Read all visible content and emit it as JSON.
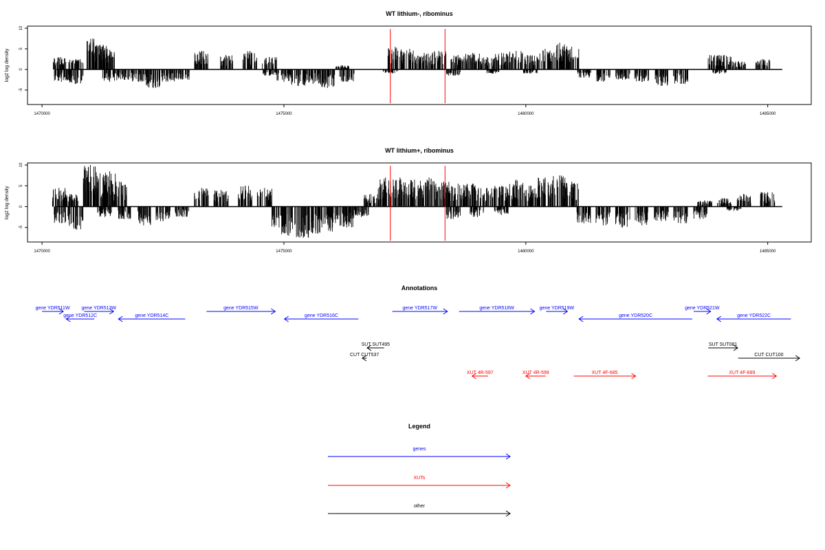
{
  "chart_data": [
    {
      "type": "bar",
      "title": "WT lithium-, ribominus",
      "ylabel": "log2 log density",
      "xlabel": "",
      "xlim": [
        1469700,
        1485900
      ],
      "ylim": [
        -8.5,
        10.5
      ],
      "xticks": [
        1470000,
        1475000,
        1480000,
        1485000
      ],
      "xtick_labels": [
        "1470000",
        "1475000",
        "1480000",
        "1485000"
      ],
      "yticks": [
        -5,
        0,
        5,
        10
      ],
      "ytick_labels": [
        "-5",
        "0",
        "5",
        "10"
      ],
      "series": [
        {
          "strand": "plus",
          "x": [
            1470350,
            1470700,
            1471050,
            1471200,
            1471350,
            1473300,
            1473800,
            1474300,
            1474700,
            1476200,
            1477300,
            1477600,
            1477900,
            1478200,
            1478600,
            1478900,
            1479200,
            1479500,
            1479800,
            1480100,
            1480400,
            1480700,
            1480950,
            1483900,
            1484100,
            1484400,
            1484900
          ],
          "y": [
            3,
            2.5,
            7.5,
            6,
            5,
            4.5,
            3.5,
            4.5,
            3,
            1,
            5.5,
            5,
            4,
            4.5,
            3.5,
            4,
            3,
            4,
            4.5,
            3.5,
            5,
            6.5,
            5.5,
            3.5,
            3.5,
            2,
            2.5
          ]
        },
        {
          "strand": "minus",
          "x": [
            1470400,
            1470700,
            1471400,
            1471700,
            1472000,
            1472300,
            1472600,
            1472900,
            1474700,
            1475000,
            1475300,
            1475600,
            1475900,
            1476300,
            1477200,
            1478500,
            1479300,
            1480100,
            1481200,
            1481600,
            1482000,
            1482400,
            1482800,
            1483200,
            1484000
          ],
          "y": [
            -3,
            -3.5,
            -3,
            -2.5,
            -3,
            -4.5,
            -3,
            -2.5,
            -1.5,
            -3,
            -4,
            -3.5,
            -4.5,
            -3,
            -1,
            -1.5,
            -1,
            -1,
            -2,
            -3,
            -2.5,
            -3,
            -4,
            -3.5,
            -1
          ]
        }
      ],
      "markers": [
        1477200,
        1478330
      ],
      "marker_color": "#ff0000"
    },
    {
      "type": "bar",
      "title": "WT lithium+, ribominus",
      "ylabel": "log2 log density",
      "xlabel": "",
      "xlim": [
        1469700,
        1485900
      ],
      "ylim": [
        -8.5,
        10.5
      ],
      "xticks": [
        1470000,
        1475000,
        1480000,
        1485000
      ],
      "xtick_labels": [
        "1470000",
        "1475000",
        "1480000",
        "1485000"
      ],
      "yticks": [
        -5,
        0,
        5,
        10
      ],
      "ytick_labels": [
        "-5",
        "0",
        "5",
        "10"
      ],
      "series": [
        {
          "strand": "plus",
          "x": [
            1470350,
            1470600,
            1471000,
            1471200,
            1471400,
            1471600,
            1473300,
            1473700,
            1474200,
            1474600,
            1476800,
            1477100,
            1477400,
            1477700,
            1478000,
            1478300,
            1478600,
            1478900,
            1479200,
            1479500,
            1479800,
            1480100,
            1480400,
            1480700,
            1480950,
            1483700,
            1484100,
            1484500,
            1485000
          ],
          "y": [
            4.5,
            3,
            10,
            8,
            8.5,
            6,
            4.5,
            4,
            5,
            4.5,
            3,
            7,
            7,
            6.5,
            7,
            6,
            5.5,
            5.5,
            4.5,
            5,
            6.5,
            5,
            7,
            7.5,
            6,
            1.5,
            2,
            3,
            3.5
          ]
        },
        {
          "strand": "minus",
          "x": [
            1470400,
            1470700,
            1471300,
            1471700,
            1472100,
            1472500,
            1472900,
            1474900,
            1475100,
            1475400,
            1475700,
            1476000,
            1476300,
            1476600,
            1478500,
            1479000,
            1479500,
            1481200,
            1481600,
            1482000,
            1482400,
            1482800,
            1483200,
            1483600,
            1484300
          ],
          "y": [
            -4,
            -5.5,
            -2.5,
            -3,
            -4.5,
            -3.5,
            -2.5,
            -5,
            -7,
            -7.5,
            -6.5,
            -6,
            -5,
            -2.5,
            -3,
            -2.5,
            -2,
            -4,
            -4.5,
            -5,
            -4.5,
            -3.5,
            -4,
            -3,
            -1
          ]
        }
      ],
      "markers": [
        1477200,
        1478330
      ],
      "marker_color": "#ff0000"
    }
  ],
  "annotations": {
    "title": "Annotations",
    "items": [
      {
        "label": "gene YDR511W",
        "start": 1470000,
        "end": 1470440,
        "strand": "+",
        "row": 0,
        "kind": "gene"
      },
      {
        "label": "gene YDR512C",
        "start": 1470500,
        "end": 1471080,
        "strand": "-",
        "row": 1,
        "kind": "gene"
      },
      {
        "label": "gene YDR513W",
        "start": 1470870,
        "end": 1471480,
        "strand": "+",
        "row": 0,
        "kind": "gene"
      },
      {
        "label": "gene YDR514C",
        "start": 1471580,
        "end": 1472960,
        "strand": "-",
        "row": 1,
        "kind": "gene"
      },
      {
        "label": "gene YDR515W",
        "start": 1473400,
        "end": 1474820,
        "strand": "+",
        "row": 0,
        "kind": "gene"
      },
      {
        "label": "gene YDR516C",
        "start": 1475010,
        "end": 1476540,
        "strand": "-",
        "row": 1,
        "kind": "gene"
      },
      {
        "label": "gene YDR517W",
        "start": 1477240,
        "end": 1478380,
        "strand": "+",
        "row": 0,
        "kind": "gene"
      },
      {
        "label": "gene YDR518W",
        "start": 1478620,
        "end": 1480180,
        "strand": "+",
        "row": 0,
        "kind": "gene"
      },
      {
        "label": "gene YDR519W",
        "start": 1480420,
        "end": 1480860,
        "strand": "+",
        "row": 0,
        "kind": "gene"
      },
      {
        "label": "gene YDR520C",
        "start": 1481100,
        "end": 1483440,
        "strand": "-",
        "row": 1,
        "kind": "gene"
      },
      {
        "label": "gene YDR521W",
        "start": 1483470,
        "end": 1483820,
        "strand": "+",
        "row": 0,
        "kind": "gene"
      },
      {
        "label": "gene YDR522C",
        "start": 1483950,
        "end": 1485480,
        "strand": "-",
        "row": 1,
        "kind": "gene"
      },
      {
        "label": "SUT SUT495",
        "start": 1476720,
        "end": 1477070,
        "strand": "-",
        "row": 3,
        "kind": "other"
      },
      {
        "label": "CUT CUT537",
        "start": 1476620,
        "end": 1476710,
        "strand": "-",
        "row": 4,
        "kind": "other"
      },
      {
        "label": "SUT SUT081",
        "start": 1483770,
        "end": 1484380,
        "strand": "+",
        "row": 3,
        "kind": "other"
      },
      {
        "label": "CUT CUT100",
        "start": 1484390,
        "end": 1485660,
        "strand": "+",
        "row": 4,
        "kind": "other"
      },
      {
        "label": "XUT 4R-597",
        "start": 1478890,
        "end": 1479220,
        "strand": "-",
        "row": 5,
        "kind": "xut"
      },
      {
        "label": "XUT 4R-599",
        "start": 1480000,
        "end": 1480410,
        "strand": "-",
        "row": 5,
        "kind": "xut"
      },
      {
        "label": "XUT 4F-685",
        "start": 1480990,
        "end": 1482270,
        "strand": "+",
        "row": 5,
        "kind": "xut"
      },
      {
        "label": "XUT 4F-689",
        "start": 1483760,
        "end": 1485180,
        "strand": "+",
        "row": 5,
        "kind": "xut"
      }
    ]
  },
  "legend": {
    "title": "Legend",
    "items": [
      {
        "label": "genes",
        "color": "#0000ff"
      },
      {
        "label": "XUTs",
        "color": "#ff0000"
      },
      {
        "label": "other",
        "color": "#000000"
      }
    ]
  },
  "colors": {
    "gene": "#0000ff",
    "xut": "#ff0000",
    "other": "#000000",
    "signal": "#000000"
  }
}
